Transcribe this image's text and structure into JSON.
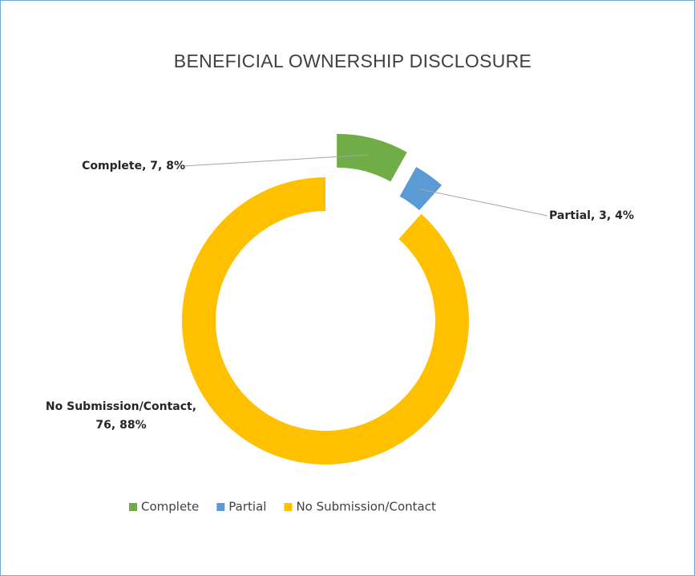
{
  "chart_data": {
    "type": "pie",
    "title": "BENEFICIAL OWNERSHIP DISCLOSURE",
    "categories": [
      "Complete",
      "Partial",
      "No Submission/Contact"
    ],
    "values": [
      7,
      3,
      76
    ],
    "value_labels": [
      "Complete, 7, 8%",
      "Partial, 3, 4%",
      "No Submission/Contact, 76, 88%"
    ],
    "colors": [
      "#70ad47",
      "#5b9bd5",
      "#ffc000"
    ],
    "legend": "bottom"
  }
}
